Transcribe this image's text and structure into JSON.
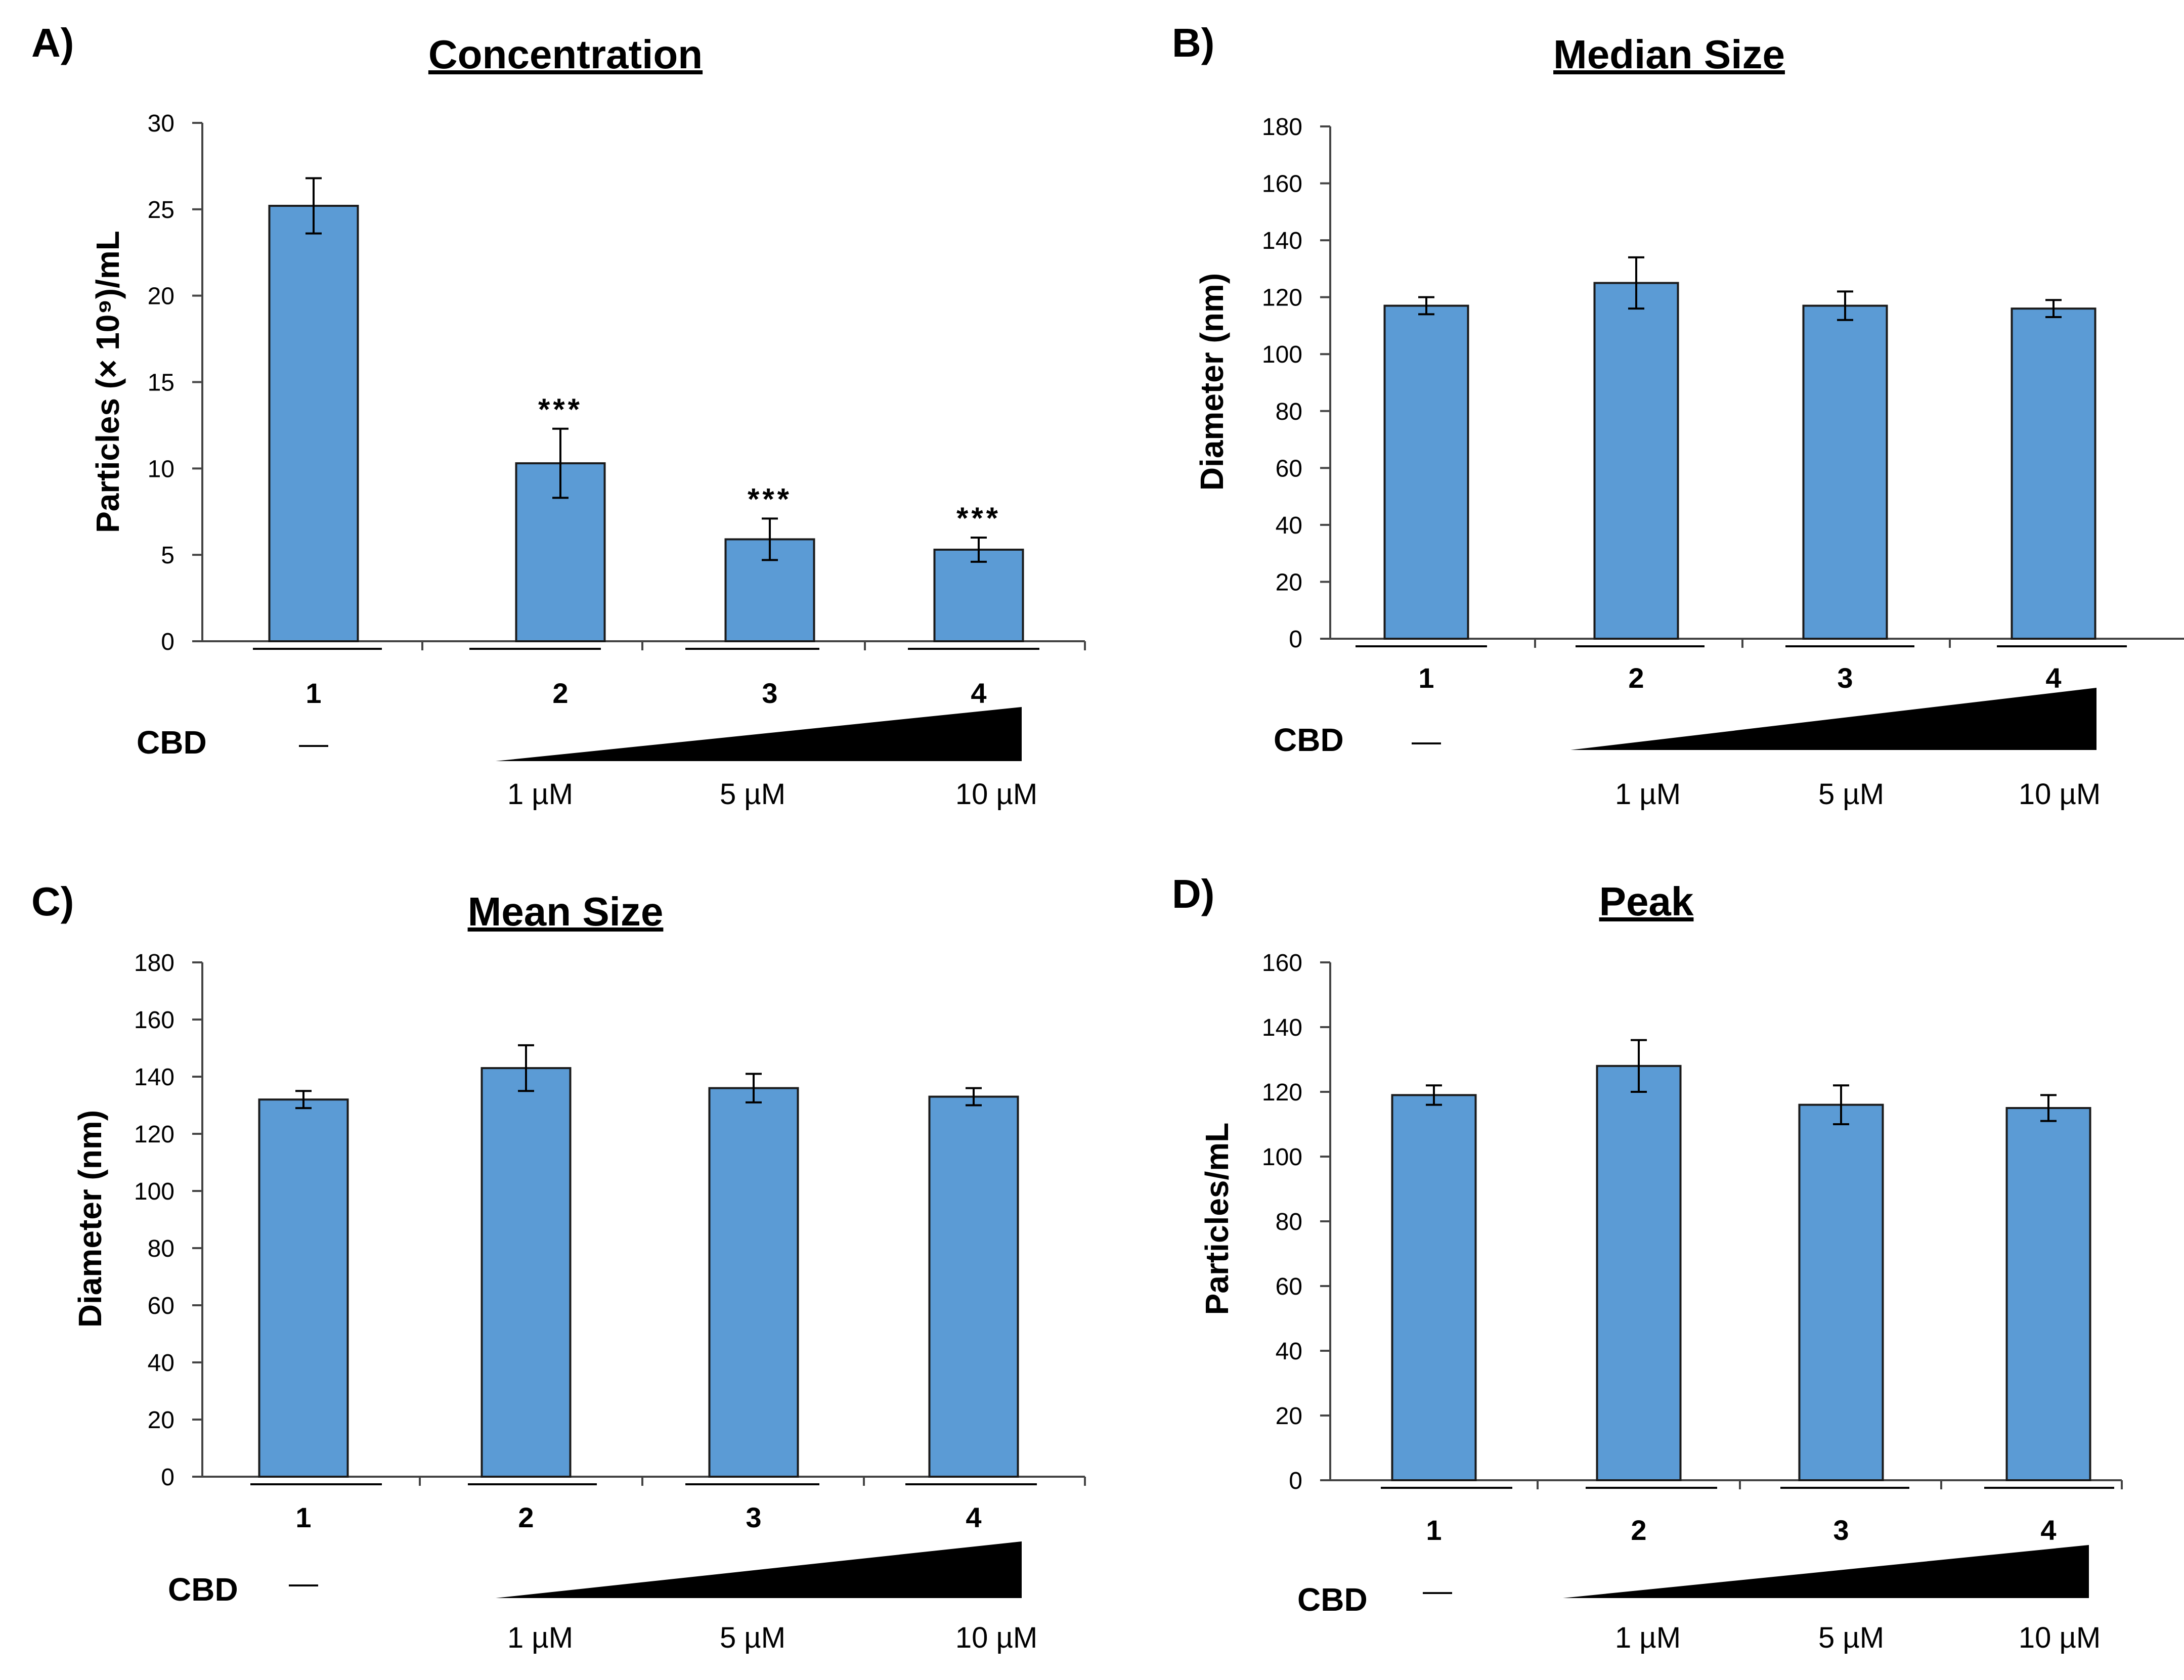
{
  "chart_data": [
    {
      "panel": "A)",
      "type": "bar",
      "title": "Concentration",
      "ylabel": "Particles (× 10⁹)/mL",
      "ylim": [
        0,
        30
      ],
      "yticks": [
        "0",
        "5",
        "10",
        "15",
        "20",
        "25",
        "30"
      ],
      "categories": [
        "1",
        "2",
        "3",
        "4"
      ],
      "values": [
        25.2,
        10.3,
        5.9,
        5.3
      ],
      "errors": [
        1.6,
        2.0,
        1.2,
        0.7
      ],
      "annotations": [
        "",
        "***",
        "***",
        "***"
      ],
      "treatment_label": "CBD",
      "control_mark": "—",
      "doses": [
        "1 µM",
        "5 µM",
        "10 µM"
      ]
    },
    {
      "panel": "B)",
      "type": "bar",
      "title": "Median Size",
      "ylabel": "Diameter (nm)",
      "ylim": [
        0,
        180
      ],
      "yticks": [
        "0",
        "20",
        "40",
        "60",
        "80",
        "100",
        "120",
        "140",
        "160",
        "180"
      ],
      "categories": [
        "1",
        "2",
        "3",
        "4"
      ],
      "values": [
        117,
        125,
        117,
        116
      ],
      "errors": [
        3,
        9,
        5,
        3
      ],
      "annotations": [
        "",
        "",
        "",
        ""
      ],
      "treatment_label": "CBD",
      "control_mark": "—",
      "doses": [
        "1 µM",
        "5 µM",
        "10 µM"
      ]
    },
    {
      "panel": "C)",
      "type": "bar",
      "title": "Mean Size",
      "ylabel": "Diameter (nm)",
      "ylim": [
        0,
        180
      ],
      "yticks": [
        "0",
        "20",
        "40",
        "60",
        "80",
        "100",
        "120",
        "140",
        "160",
        "180"
      ],
      "categories": [
        "1",
        "2",
        "3",
        "4"
      ],
      "values": [
        132,
        143,
        136,
        133
      ],
      "errors": [
        3,
        8,
        5,
        3
      ],
      "annotations": [
        "",
        "",
        "",
        ""
      ],
      "treatment_label": "CBD",
      "control_mark": "—",
      "doses": [
        "1 µM",
        "5 µM",
        "10 µM"
      ]
    },
    {
      "panel": "D)",
      "type": "bar",
      "title": "Peak",
      "ylabel": "Particles/mL",
      "ylim": [
        0,
        160
      ],
      "yticks": [
        "0",
        "20",
        "40",
        "60",
        "80",
        "100",
        "120",
        "140",
        "160"
      ],
      "categories": [
        "1",
        "2",
        "3",
        "4"
      ],
      "values": [
        119,
        128,
        116,
        115
      ],
      "errors": [
        3,
        8,
        6,
        4
      ],
      "annotations": [
        "",
        "",
        "",
        ""
      ],
      "treatment_label": "CBD",
      "control_mark": "—",
      "doses": [
        "1 µM",
        "5 µM",
        "10 µM"
      ]
    }
  ],
  "colors": {
    "bar": "#5b9bd5",
    "bar_edge": "#1a1a1a",
    "axis": "#444444",
    "wedge": "#000000"
  }
}
